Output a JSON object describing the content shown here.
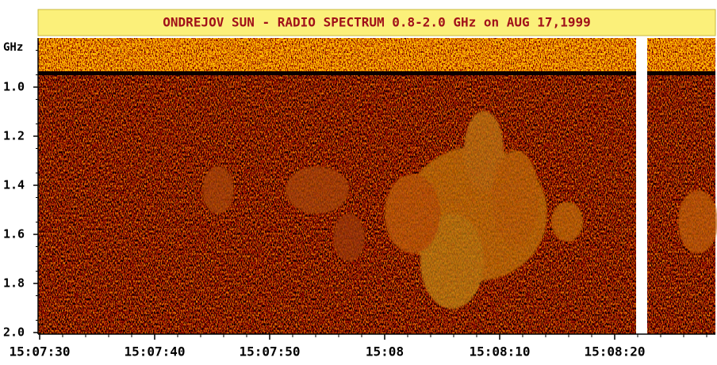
{
  "chart_data": {
    "type": "spectrogram",
    "title": "ONDREJOV SUN - RADIO SPECTRUM 0.8-2.0 GHz on AUG 17,1999",
    "y_label": "GHz",
    "ylim": [
      0.8,
      2.0
    ],
    "yticks": [
      {
        "value": 1,
        "label": "1.0"
      },
      1.2,
      1.4,
      1.6,
      1.8,
      {
        "value": 2,
        "label": "2.0"
      }
    ],
    "categories": [
      "15:07:30",
      "15:07:40",
      "15:07:50",
      "15:08",
      "15:08:10",
      "15:08:20"
    ]
  }
}
